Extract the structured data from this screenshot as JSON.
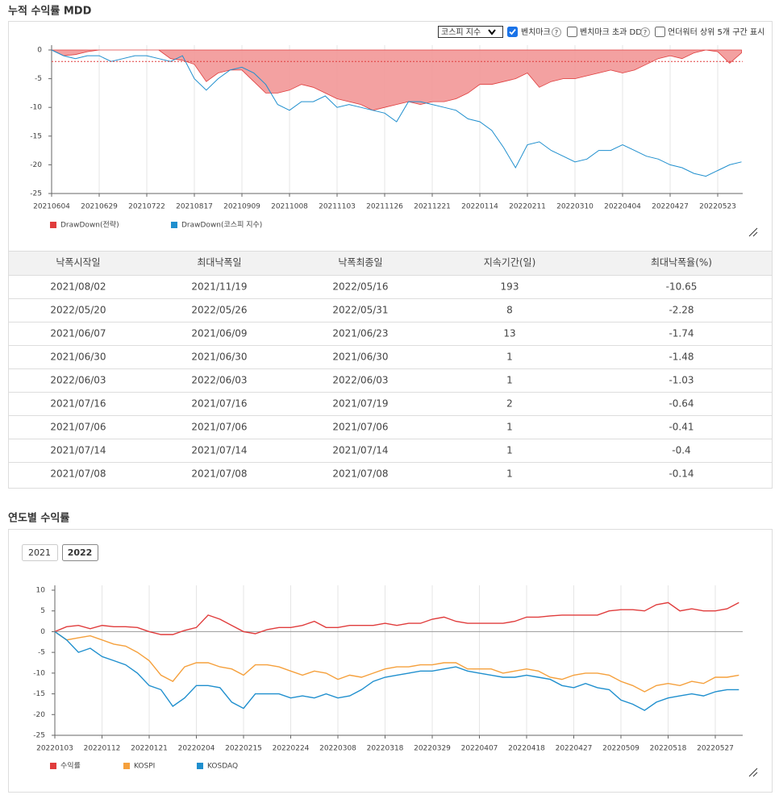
{
  "sections": {
    "mdd_title": "누적 수익률 MDD",
    "yearly_title": "연도별 수익률"
  },
  "controls": {
    "select": "코스피 지수",
    "benchmark": "벤치마크",
    "excess_dd": "벤치마크 초과 DD",
    "underwater": "언더워터 상위 5개 구간 표시",
    "help": "?",
    "benchmark_checked": true,
    "excess_dd_checked": false,
    "underwater_checked": false
  },
  "year_buttons": [
    "2021",
    "2022"
  ],
  "chart_data": [
    {
      "type": "line",
      "categories": [
        "20210604",
        null,
        null,
        null,
        "20210629",
        null,
        null,
        null,
        "20210722",
        null,
        null,
        null,
        "20210817",
        null,
        null,
        null,
        "20210909",
        null,
        null,
        null,
        "20211008",
        null,
        null,
        null,
        "20211103",
        null,
        null,
        null,
        "20211126",
        null,
        null,
        null,
        "20211221",
        null,
        null,
        null,
        "20220114",
        null,
        null,
        null,
        "20220211",
        null,
        null,
        null,
        "20220310",
        null,
        null,
        null,
        "20220404",
        null,
        null,
        null,
        "20220427",
        null,
        null,
        null,
        "20220523",
        null,
        null
      ],
      "series": [
        {
          "name": "DrawDown(전략)",
          "color": "#e03c3c",
          "area": true,
          "fill": "#f29c9c",
          "values": [
            0,
            -1,
            -0.8,
            -0.3,
            0,
            0,
            0,
            0,
            0,
            0,
            -1.5,
            -1.8,
            -2.5,
            -5.5,
            -4,
            -3.5,
            -3.5,
            -5.5,
            -7.5,
            -7.5,
            -7,
            -6,
            -6.5,
            -7.5,
            -8.5,
            -9,
            -9.5,
            -10.5,
            -10,
            -9.5,
            -9,
            -9.5,
            -9,
            -9,
            -8.5,
            -7.5,
            -6,
            -6,
            -5.5,
            -5,
            -4,
            -6.5,
            -5.5,
            -5,
            -5,
            -4.5,
            -4,
            -3.5,
            -4,
            -3.5,
            -2.5,
            -1.5,
            -1,
            -1.5,
            -0.5,
            0,
            -0.3,
            -2.3,
            -0.5
          ]
        },
        {
          "name": "DrawDown(코스피 지수)",
          "color": "#1f8fce",
          "values": [
            0,
            -1,
            -1.5,
            -1,
            -1,
            -2,
            -1.5,
            -1,
            -1,
            -1.5,
            -2,
            -1,
            -5,
            -7,
            -5,
            -3.5,
            -3,
            -4,
            -6,
            -9.5,
            -10.5,
            -9,
            -9,
            -8,
            -10,
            -9.5,
            -10,
            -10.5,
            -11,
            -12.5,
            -9,
            -9,
            -9.5,
            -10,
            -10.5,
            -12,
            -12.5,
            -14,
            -17,
            -20.5,
            -16.5,
            -16,
            -17.5,
            -18.5,
            -19.5,
            -19,
            -17.5,
            -17.5,
            -16.5,
            -17.5,
            -18.5,
            -19,
            -20,
            -20.5,
            -21.5,
            -22,
            -21,
            -20,
            -19.5
          ]
        }
      ],
      "reference_line": {
        "value": -2,
        "color": "#e03c3c"
      },
      "ylim": [
        -25,
        0
      ],
      "yticks": [
        0,
        -5,
        -10,
        -15,
        -20,
        -25
      ],
      "grid": true,
      "zero_line": false
    },
    {
      "type": "line",
      "categories": [
        "20220103",
        null,
        null,
        null,
        "20220112",
        null,
        null,
        null,
        "20220121",
        null,
        null,
        null,
        "20220204",
        null,
        null,
        null,
        "20220215",
        null,
        null,
        null,
        "20220224",
        null,
        null,
        null,
        "20220308",
        null,
        null,
        null,
        "20220318",
        null,
        null,
        null,
        "20220329",
        null,
        null,
        null,
        "20220407",
        null,
        null,
        null,
        "20220418",
        null,
        null,
        null,
        "20220427",
        null,
        null,
        null,
        "20220509",
        null,
        null,
        null,
        "20220518",
        null,
        null,
        null,
        "20220527",
        null,
        null
      ],
      "series": [
        {
          "name": "수익률",
          "color": "#e03c3c",
          "values": [
            0,
            1.2,
            1.5,
            0.7,
            1.5,
            1.2,
            1.2,
            1,
            0,
            -0.7,
            -0.7,
            0.3,
            1,
            4,
            3,
            1.5,
            0,
            -0.5,
            0.5,
            1,
            1,
            1.5,
            2.5,
            1,
            1,
            1.5,
            1.5,
            1.5,
            2,
            1.5,
            2,
            2,
            3,
            3.5,
            2.5,
            2,
            2,
            2,
            2,
            2.5,
            3.5,
            3.5,
            3.8,
            4,
            4,
            4,
            4,
            5,
            5.3,
            5.3,
            5,
            6.5,
            7,
            5,
            5.5,
            5,
            5,
            5.5,
            7
          ]
        },
        {
          "name": "KOSPI",
          "color": "#f5a03c",
          "values": [
            0,
            -2,
            -1.5,
            -1,
            -2,
            -3,
            -3.5,
            -5,
            -7,
            -10.5,
            -12,
            -8.5,
            -7.5,
            -7.5,
            -8.5,
            -9,
            -10.5,
            -8,
            -8,
            -8.5,
            -9.5,
            -10.5,
            -9.5,
            -10,
            -11.5,
            -10.5,
            -11,
            -10,
            -9,
            -8.5,
            -8.5,
            -8,
            -8,
            -7.5,
            -7.5,
            -9,
            -9,
            -9,
            -10,
            -9.5,
            -9,
            -9.5,
            -11,
            -11.5,
            -10.5,
            -10,
            -10,
            -10.5,
            -12,
            -13,
            -14.5,
            -13,
            -12.5,
            -13,
            -12,
            -12.5,
            -11,
            -11,
            -10.5
          ]
        },
        {
          "name": "KOSDAQ",
          "color": "#1f8fce",
          "values": [
            0,
            -2,
            -5,
            -4,
            -6,
            -7,
            -8,
            -10,
            -13,
            -14,
            -18,
            -16,
            -13,
            -13,
            -13.5,
            -17,
            -18.5,
            -15,
            -15,
            -15,
            -16,
            -15.5,
            -16,
            -15,
            -16,
            -15.5,
            -14,
            -12,
            -11,
            -10.5,
            -10,
            -9.5,
            -9.5,
            -9,
            -8.5,
            -9.5,
            -10,
            -10.5,
            -11,
            -11,
            -10.5,
            -11,
            -11.5,
            -13,
            -13.5,
            -12.5,
            -13.5,
            -14,
            -16.5,
            -17.5,
            -19,
            -17,
            -16,
            -15.5,
            -15,
            -15.5,
            -14.5,
            -14,
            -14
          ]
        }
      ],
      "ylim": [
        -25,
        10
      ],
      "yticks": [
        10,
        5,
        0,
        -5,
        -10,
        -15,
        -20,
        -25
      ],
      "grid": true,
      "zero_line": true
    }
  ],
  "table": {
    "columns": [
      "낙폭시작일",
      "최대낙폭일",
      "낙폭최종일",
      "지속기간(일)",
      "최대낙폭율(%)"
    ],
    "rows": [
      [
        "2021/08/02",
        "2021/11/19",
        "2022/05/16",
        193,
        -10.65
      ],
      [
        "2022/05/20",
        "2022/05/26",
        "2022/05/31",
        8,
        -2.28
      ],
      [
        "2021/06/07",
        "2021/06/09",
        "2021/06/23",
        13,
        -1.74
      ],
      [
        "2021/06/30",
        "2021/06/30",
        "2021/06/30",
        1,
        -1.48
      ],
      [
        "2022/06/03",
        "2022/06/03",
        "2022/06/03",
        1,
        -1.03
      ],
      [
        "2021/07/16",
        "2021/07/16",
        "2021/07/19",
        2,
        -0.64
      ],
      [
        "2021/07/06",
        "2021/07/06",
        "2021/07/06",
        1,
        -0.41
      ],
      [
        "2021/07/14",
        "2021/07/14",
        "2021/07/14",
        1,
        -0.4
      ],
      [
        "2021/07/08",
        "2021/07/08",
        "2021/07/08",
        1,
        -0.14
      ]
    ]
  }
}
